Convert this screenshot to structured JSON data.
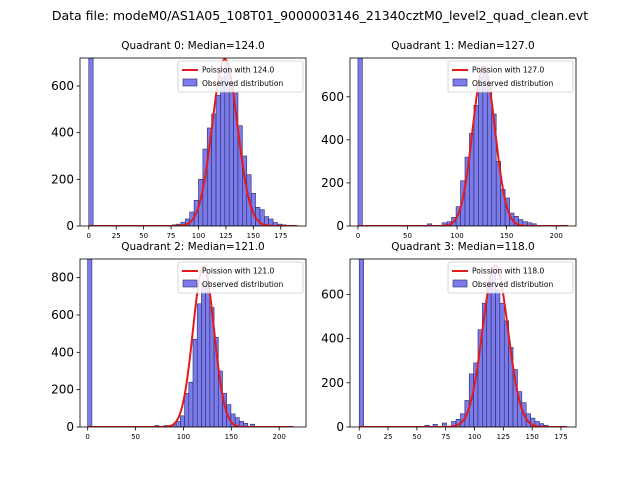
{
  "figure_title": "Data file: modeM0/AS1A05_108T01_9000003146_21340cztM0_level2_quad_clean.evt",
  "colors": {
    "bar_fill": "#7b7bea",
    "bar_edge": "#2a2a6a",
    "curve": "#e41a1c"
  },
  "chart_data": [
    {
      "type": "bar",
      "title": "Quadrant 0: Median=124.0",
      "median": 124,
      "xlim": [
        -8,
        198
      ],
      "ylim": [
        0,
        720
      ],
      "xticks": [
        0,
        25,
        50,
        75,
        100,
        125,
        150,
        175
      ],
      "yticks": [
        0,
        200,
        400,
        600
      ],
      "bin_width": 4,
      "zero_spike": 720,
      "bins": [
        [
          60,
          2
        ],
        [
          64,
          1
        ],
        [
          68,
          2
        ],
        [
          72,
          3
        ],
        [
          76,
          5
        ],
        [
          80,
          8
        ],
        [
          84,
          16
        ],
        [
          88,
          30
        ],
        [
          92,
          60
        ],
        [
          96,
          110
        ],
        [
          100,
          200
        ],
        [
          104,
          330
        ],
        [
          108,
          420
        ],
        [
          112,
          480
        ],
        [
          116,
          560
        ],
        [
          120,
          640
        ],
        [
          124,
          700
        ],
        [
          128,
          620
        ],
        [
          132,
          570
        ],
        [
          136,
          430
        ],
        [
          140,
          300
        ],
        [
          144,
          220
        ],
        [
          148,
          140
        ],
        [
          152,
          80
        ],
        [
          156,
          70
        ],
        [
          160,
          40
        ],
        [
          164,
          30
        ],
        [
          168,
          15
        ],
        [
          172,
          8
        ],
        [
          176,
          5
        ],
        [
          180,
          3
        ],
        [
          184,
          2
        ]
      ],
      "curve": {
        "lambda": 124,
        "peak": 715,
        "sigma": 11.5,
        "x_range": [
          0,
          190
        ]
      },
      "legend": [
        "Poission with 124.0",
        "Observed distribution"
      ]
    },
    {
      "type": "bar",
      "title": "Quadrant 1: Median=127.0",
      "median": 127,
      "xlim": [
        -8,
        220
      ],
      "ylim": [
        0,
        780
      ],
      "xticks": [
        0,
        50,
        100,
        150,
        200
      ],
      "yticks": [
        0,
        200,
        400,
        600
      ],
      "bin_width": 4.5,
      "zero_spike": 780,
      "bins": [
        [
          70,
          10
        ],
        [
          85,
          15
        ],
        [
          90,
          20
        ],
        [
          94.5,
          40
        ],
        [
          99,
          90
        ],
        [
          103.5,
          210
        ],
        [
          108,
          320
        ],
        [
          112.5,
          430
        ],
        [
          117,
          560
        ],
        [
          121.5,
          690
        ],
        [
          126,
          740
        ],
        [
          130.5,
          660
        ],
        [
          135,
          520
        ],
        [
          139.5,
          300
        ],
        [
          144,
          170
        ],
        [
          148.5,
          130
        ],
        [
          153,
          60
        ],
        [
          157.5,
          45
        ],
        [
          162,
          30
        ],
        [
          166.5,
          20
        ],
        [
          171,
          15
        ],
        [
          175.5,
          10
        ]
      ],
      "curve": {
        "lambda": 127,
        "peak": 740,
        "sigma": 11.3,
        "x_range": [
          0,
          212
        ]
      },
      "legend": [
        "Poission with 127.0",
        "Observed distribution"
      ]
    },
    {
      "type": "bar",
      "title": "Quadrant 2: Median=121.0",
      "median": 121,
      "xlim": [
        -8,
        228
      ],
      "ylim": [
        0,
        900
      ],
      "xticks": [
        0,
        50,
        100,
        150,
        200
      ],
      "yticks": [
        0,
        200,
        400,
        600,
        800
      ],
      "bin_width": 4.4,
      "zero_spike": 900,
      "bins": [
        [
          70,
          8
        ],
        [
          80,
          8
        ],
        [
          88,
          12
        ],
        [
          92.4,
          30
        ],
        [
          96.8,
          60
        ],
        [
          101.2,
          180
        ],
        [
          105.6,
          240
        ],
        [
          110,
          470
        ],
        [
          114.4,
          660
        ],
        [
          118.8,
          770
        ],
        [
          123.2,
          760
        ],
        [
          127.6,
          640
        ],
        [
          132,
          480
        ],
        [
          136.4,
          300
        ],
        [
          140.8,
          180
        ],
        [
          145.2,
          120
        ],
        [
          149.6,
          70
        ],
        [
          154,
          50
        ],
        [
          158.4,
          30
        ],
        [
          162.8,
          20
        ],
        [
          170,
          15
        ]
      ],
      "curve": {
        "lambda": 121,
        "peak": 860,
        "sigma": 11,
        "x_range": [
          0,
          215
        ]
      },
      "legend": [
        "Poission with 121.0",
        "Observed distribution"
      ]
    },
    {
      "type": "bar",
      "title": "Quadrant 3: Median=118.0",
      "median": 118,
      "xlim": [
        -8,
        188
      ],
      "ylim": [
        0,
        760
      ],
      "xticks": [
        0,
        25,
        50,
        75,
        100,
        125,
        150,
        175
      ],
      "yticks": [
        0,
        200,
        400,
        600
      ],
      "bin_width": 3.8,
      "zero_spike": 760,
      "bins": [
        [
          45,
          3
        ],
        [
          57,
          8
        ],
        [
          64,
          12
        ],
        [
          72,
          18
        ],
        [
          80,
          25
        ],
        [
          84,
          35
        ],
        [
          87.8,
          60
        ],
        [
          91.6,
          120
        ],
        [
          95.4,
          240
        ],
        [
          99.2,
          290
        ],
        [
          103,
          440
        ],
        [
          106.8,
          560
        ],
        [
          110.6,
          660
        ],
        [
          114.4,
          700
        ],
        [
          118.2,
          620
        ],
        [
          122,
          560
        ],
        [
          125.8,
          480
        ],
        [
          129.6,
          360
        ],
        [
          133.4,
          260
        ],
        [
          137.2,
          160
        ],
        [
          141,
          110
        ],
        [
          144.8,
          60
        ],
        [
          148.6,
          40
        ],
        [
          152.4,
          25
        ],
        [
          156.2,
          15
        ],
        [
          160,
          8
        ]
      ],
      "curve": {
        "lambda": 118,
        "peak": 730,
        "sigma": 11,
        "x_range": [
          0,
          180
        ]
      },
      "legend": [
        "Poission with 118.0",
        "Observed distribution"
      ]
    }
  ]
}
